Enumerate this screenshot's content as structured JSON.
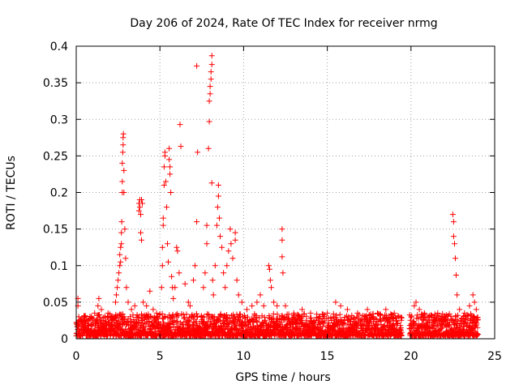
{
  "chart_data": {
    "type": "scatter",
    "title": "Day 206 of 2024, Rate Of TEC Index for receiver nrmg",
    "xlabel": "GPS time / hours",
    "ylabel": "ROTI / TECUs",
    "xlim": [
      0,
      25
    ],
    "ylim": [
      0,
      0.4
    ],
    "xticks": [
      0,
      5,
      10,
      15,
      20,
      25
    ],
    "xtick_labels": [
      "0",
      "5",
      "10",
      "15",
      "20",
      "25"
    ],
    "yticks": [
      0,
      0.05,
      0.1,
      0.15,
      0.2,
      0.25,
      0.3,
      0.35,
      0.4
    ],
    "ytick_labels": [
      "0",
      "0.05",
      "0.1",
      "0.15",
      "0.2",
      "0.25",
      "0.3",
      "0.35",
      "0.4"
    ],
    "grid": true,
    "marker": "+",
    "color": "#ff0000",
    "series": [
      {
        "name": "ROTI",
        "points": [
          [
            0.1,
            0.055
          ],
          [
            0.1,
            0.045
          ],
          [
            0.15,
            0.03
          ],
          [
            0.3,
            0.02
          ],
          [
            0.5,
            0.03
          ],
          [
            0.7,
            0.025
          ],
          [
            0.9,
            0.03
          ],
          [
            1.1,
            0.035
          ],
          [
            1.3,
            0.045
          ],
          [
            1.35,
            0.055
          ],
          [
            1.5,
            0.04
          ],
          [
            1.7,
            0.03
          ],
          [
            1.9,
            0.035
          ],
          [
            2.1,
            0.03
          ],
          [
            2.35,
            0.05
          ],
          [
            2.4,
            0.06
          ],
          [
            2.45,
            0.07
          ],
          [
            2.5,
            0.08
          ],
          [
            2.55,
            0.09
          ],
          [
            2.6,
            0.1
          ],
          [
            2.6,
            0.115
          ],
          [
            2.65,
            0.125
          ],
          [
            2.65,
            0.105
          ],
          [
            2.7,
            0.13
          ],
          [
            2.7,
            0.145
          ],
          [
            2.72,
            0.16
          ],
          [
            2.75,
            0.2
          ],
          [
            2.75,
            0.215
          ],
          [
            2.75,
            0.24
          ],
          [
            2.78,
            0.255
          ],
          [
            2.8,
            0.265
          ],
          [
            2.8,
            0.275
          ],
          [
            2.82,
            0.28
          ],
          [
            2.85,
            0.23
          ],
          [
            2.85,
            0.2
          ],
          [
            2.9,
            0.15
          ],
          [
            2.95,
            0.11
          ],
          [
            3.0,
            0.07
          ],
          [
            3.1,
            0.05
          ],
          [
            3.3,
            0.04
          ],
          [
            3.5,
            0.045
          ],
          [
            3.75,
            0.185
          ],
          [
            3.75,
            0.175
          ],
          [
            3.8,
            0.19
          ],
          [
            3.8,
            0.18
          ],
          [
            3.85,
            0.17
          ],
          [
            3.85,
            0.145
          ],
          [
            3.9,
            0.135
          ],
          [
            3.9,
            0.19
          ],
          [
            3.95,
            0.185
          ],
          [
            4.0,
            0.05
          ],
          [
            4.2,
            0.045
          ],
          [
            4.4,
            0.065
          ],
          [
            4.6,
            0.04
          ],
          [
            4.8,
            0.035
          ],
          [
            5.1,
            0.07
          ],
          [
            5.15,
            0.1
          ],
          [
            5.15,
            0.125
          ],
          [
            5.2,
            0.155
          ],
          [
            5.2,
            0.165
          ],
          [
            5.25,
            0.21
          ],
          [
            5.25,
            0.235
          ],
          [
            5.3,
            0.25
          ],
          [
            5.3,
            0.255
          ],
          [
            5.35,
            0.215
          ],
          [
            5.4,
            0.18
          ],
          [
            5.45,
            0.13
          ],
          [
            5.5,
            0.105
          ],
          [
            5.55,
            0.26
          ],
          [
            5.55,
            0.245
          ],
          [
            5.6,
            0.235
          ],
          [
            5.6,
            0.225
          ],
          [
            5.65,
            0.2
          ],
          [
            5.7,
            0.085
          ],
          [
            5.75,
            0.07
          ],
          [
            5.8,
            0.055
          ],
          [
            5.9,
            0.07
          ],
          [
            6.0,
            0.125
          ],
          [
            6.05,
            0.12
          ],
          [
            6.15,
            0.09
          ],
          [
            6.2,
            0.293
          ],
          [
            6.25,
            0.263
          ],
          [
            6.5,
            0.075
          ],
          [
            6.7,
            0.05
          ],
          [
            6.8,
            0.045
          ],
          [
            7.0,
            0.08
          ],
          [
            7.1,
            0.1
          ],
          [
            7.2,
            0.16
          ],
          [
            7.2,
            0.373
          ],
          [
            7.25,
            0.255
          ],
          [
            7.6,
            0.07
          ],
          [
            7.7,
            0.09
          ],
          [
            7.8,
            0.155
          ],
          [
            7.8,
            0.13
          ],
          [
            7.9,
            0.26
          ],
          [
            7.95,
            0.297
          ],
          [
            7.95,
            0.325
          ],
          [
            8.0,
            0.335
          ],
          [
            8.0,
            0.345
          ],
          [
            8.05,
            0.355
          ],
          [
            8.05,
            0.365
          ],
          [
            8.1,
            0.375
          ],
          [
            8.1,
            0.387
          ],
          [
            8.1,
            0.213
          ],
          [
            8.15,
            0.08
          ],
          [
            8.2,
            0.06
          ],
          [
            8.3,
            0.1
          ],
          [
            8.4,
            0.155
          ],
          [
            8.45,
            0.18
          ],
          [
            8.5,
            0.195
          ],
          [
            8.5,
            0.21
          ],
          [
            8.55,
            0.165
          ],
          [
            8.6,
            0.14
          ],
          [
            8.7,
            0.125
          ],
          [
            8.8,
            0.09
          ],
          [
            8.9,
            0.07
          ],
          [
            9.0,
            0.1
          ],
          [
            9.1,
            0.12
          ],
          [
            9.2,
            0.15
          ],
          [
            9.25,
            0.13
          ],
          [
            9.35,
            0.11
          ],
          [
            9.5,
            0.145
          ],
          [
            9.5,
            0.135
          ],
          [
            9.6,
            0.08
          ],
          [
            9.7,
            0.06
          ],
          [
            9.9,
            0.05
          ],
          [
            10.2,
            0.04
          ],
          [
            10.5,
            0.045
          ],
          [
            10.8,
            0.05
          ],
          [
            11.0,
            0.06
          ],
          [
            11.2,
            0.045
          ],
          [
            11.5,
            0.1
          ],
          [
            11.55,
            0.095
          ],
          [
            11.6,
            0.08
          ],
          [
            11.65,
            0.07
          ],
          [
            11.8,
            0.05
          ],
          [
            12.0,
            0.045
          ],
          [
            12.3,
            0.15
          ],
          [
            12.3,
            0.135
          ],
          [
            12.3,
            0.112
          ],
          [
            12.35,
            0.09
          ],
          [
            12.5,
            0.045
          ],
          [
            13.0,
            0.035
          ],
          [
            13.5,
            0.04
          ],
          [
            14.0,
            0.035
          ],
          [
            14.5,
            0.03
          ],
          [
            15.0,
            0.035
          ],
          [
            15.5,
            0.05
          ],
          [
            15.8,
            0.045
          ],
          [
            16.2,
            0.04
          ],
          [
            16.8,
            0.035
          ],
          [
            17.4,
            0.04
          ],
          [
            18.0,
            0.035
          ],
          [
            18.5,
            0.04
          ],
          [
            19.0,
            0.035
          ],
          [
            19.4,
            0.015
          ],
          [
            20.0,
            0.02
          ],
          [
            20.2,
            0.045
          ],
          [
            20.3,
            0.05
          ],
          [
            20.5,
            0.04
          ],
          [
            20.8,
            0.035
          ],
          [
            21.2,
            0.03
          ],
          [
            21.6,
            0.035
          ],
          [
            22.0,
            0.03
          ],
          [
            22.2,
            0.025
          ],
          [
            22.5,
            0.17
          ],
          [
            22.55,
            0.16
          ],
          [
            22.55,
            0.14
          ],
          [
            22.6,
            0.13
          ],
          [
            22.65,
            0.11
          ],
          [
            22.7,
            0.087
          ],
          [
            22.75,
            0.06
          ],
          [
            22.9,
            0.04
          ],
          [
            23.2,
            0.035
          ],
          [
            23.5,
            0.045
          ],
          [
            23.7,
            0.06
          ],
          [
            23.8,
            0.05
          ],
          [
            23.9,
            0.04
          ]
        ]
      }
    ]
  }
}
